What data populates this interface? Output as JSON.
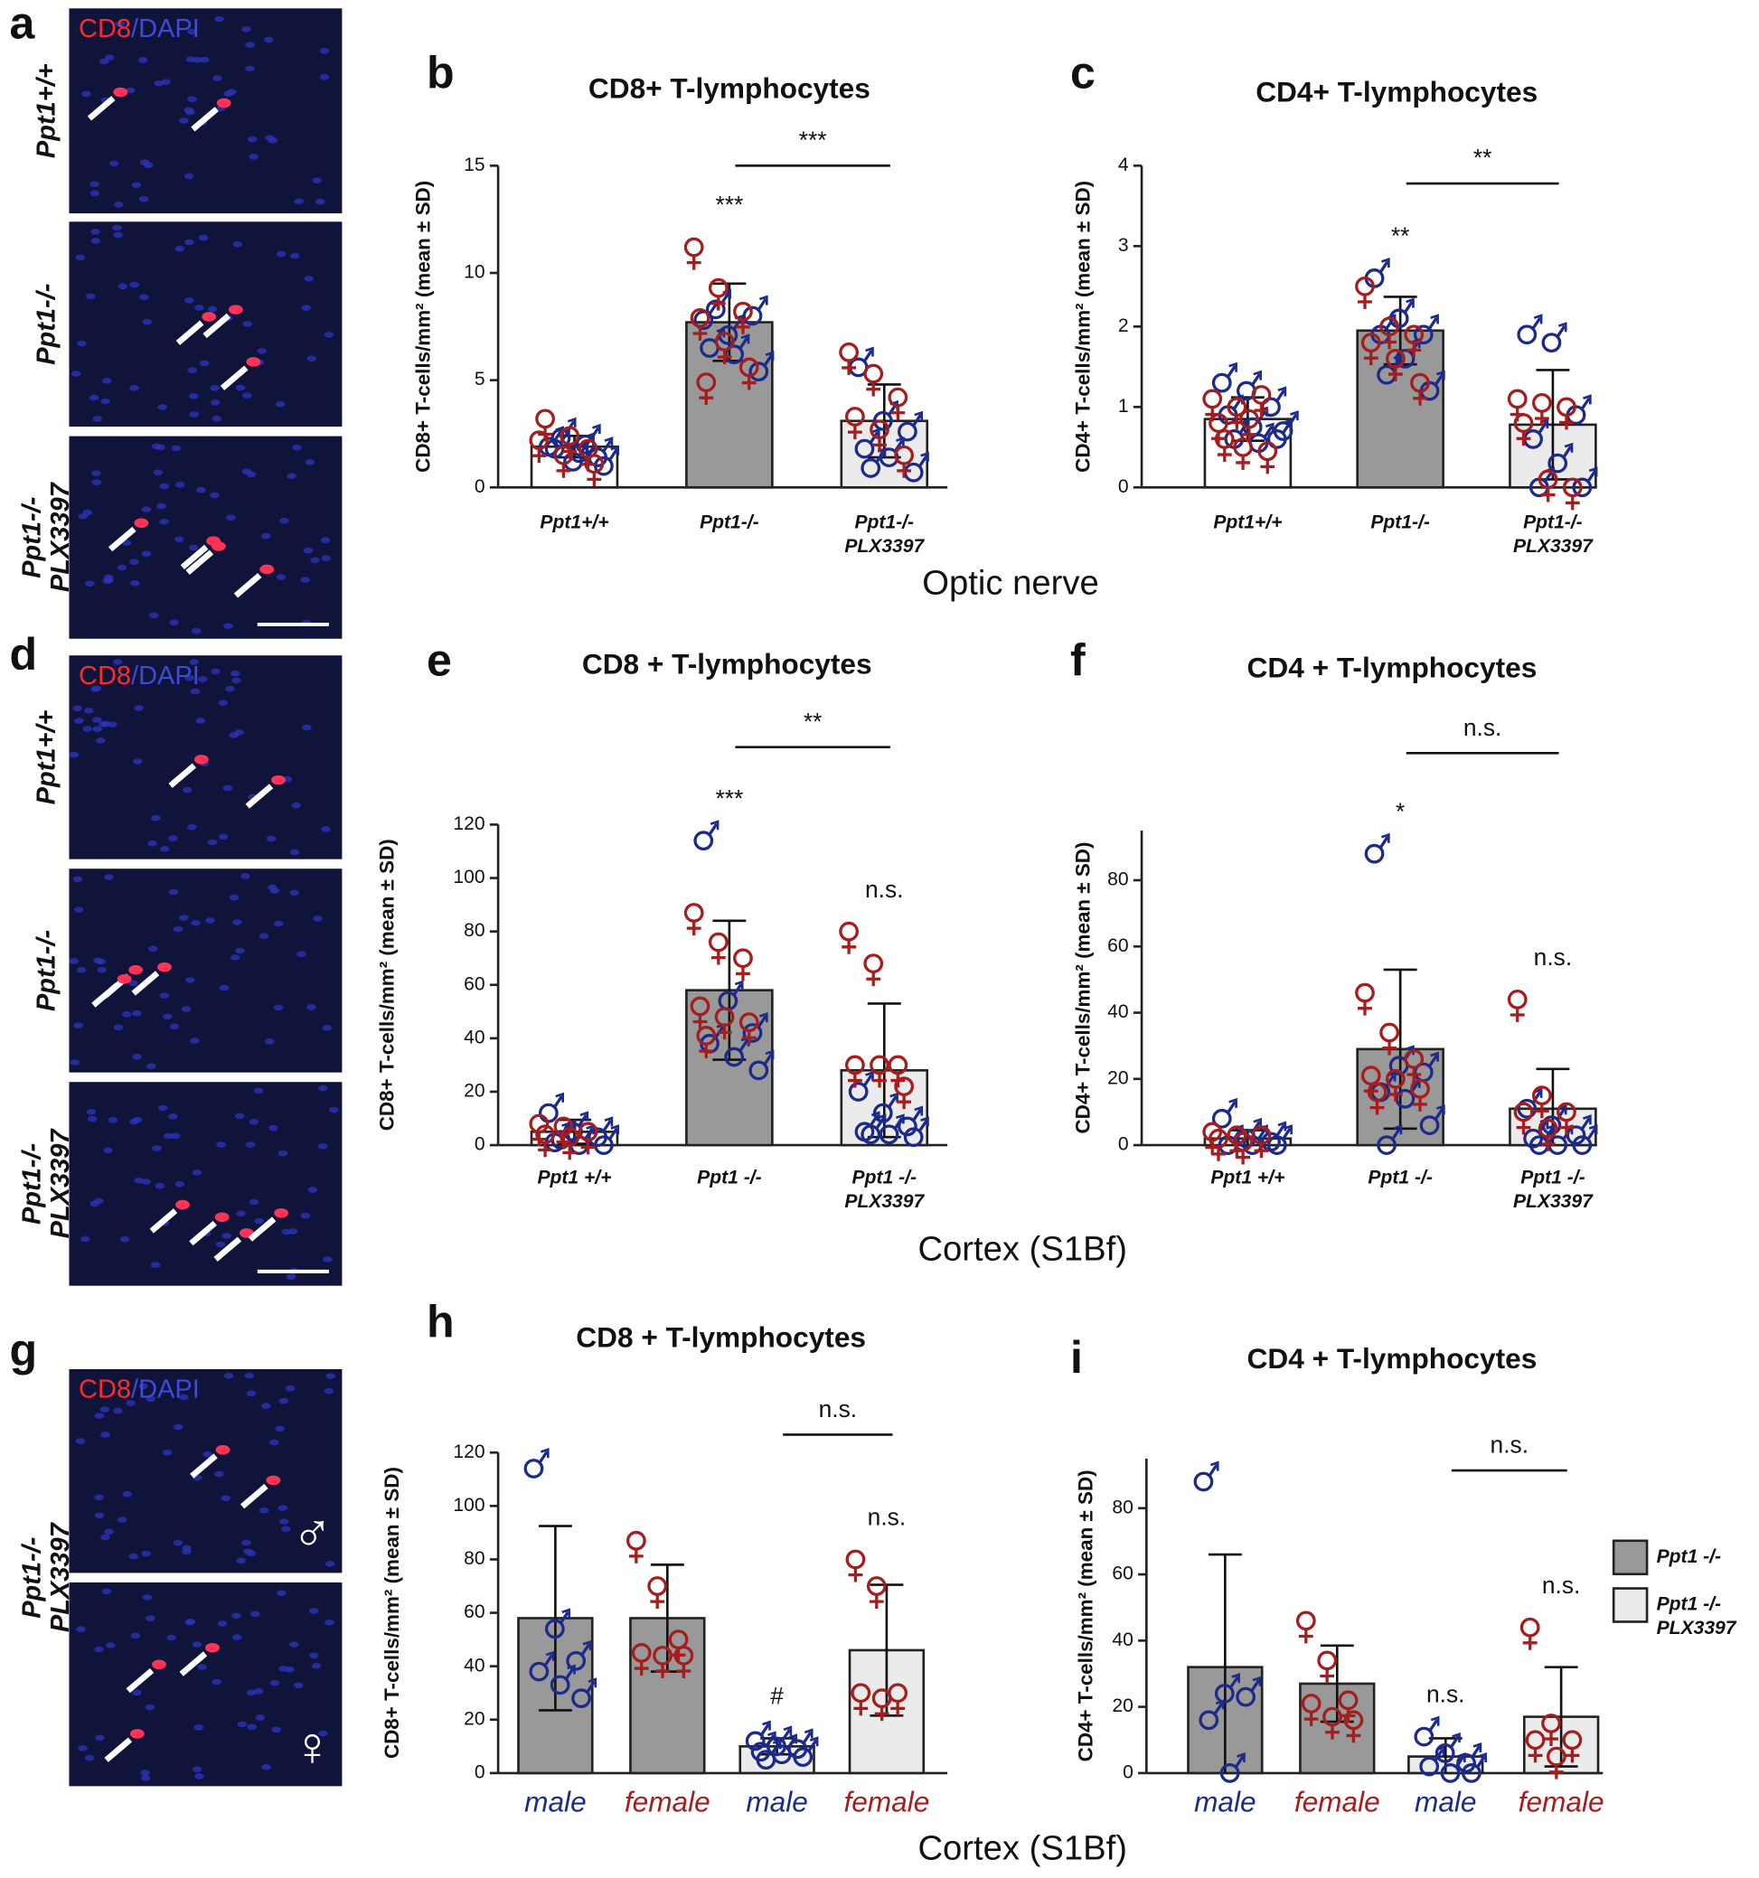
{
  "micrographs": [
    {
      "letter": "a",
      "stain": [
        "CD8",
        "/DAPI"
      ],
      "rows": [
        [
          "Ppt1+/+"
        ],
        [
          "Ppt1-/-"
        ],
        [
          "Ppt1-/-",
          "PLX3397"
        ]
      ]
    },
    {
      "letter": "d",
      "stain": [
        "CD8",
        "/DAPI"
      ],
      "rows": [
        [
          "Ppt1+/+"
        ],
        [
          "Ppt1-/-"
        ],
        [
          "Ppt1-/-",
          "PLX3397"
        ]
      ]
    },
    {
      "letter": "g",
      "stain": [
        "CD8",
        "/DAPI"
      ],
      "rows": [
        [
          "Ppt1-/-",
          "PLX3397"
        ]
      ],
      "symbols": [
        "♂",
        "♀"
      ]
    }
  ],
  "section_labels": [
    "Optic nerve",
    "Cortex (S1Bf)",
    "Cortex (S1Bf)"
  ],
  "chart_data": [
    {
      "type": "bar",
      "letter": "b",
      "title": "CD8+ T-lymphocytes",
      "y_label": "CD8+ T-cells/mm² (mean ± SD)",
      "categories": [
        [
          "Ppt1+/+"
        ],
        [
          "Ppt1-/-"
        ],
        [
          "Ppt1-/-",
          "PLX3397"
        ]
      ],
      "colors": [
        "#ffffff",
        "#999999",
        "#ebebeb"
      ],
      "values": [
        1.9,
        7.7,
        3.1
      ],
      "sd": [
        0.5,
        1.8,
        1.7
      ],
      "male_points": [
        [
          1.9,
          1.2,
          1.4,
          1.8,
          1.6,
          1.0,
          2.3,
          2.0
        ],
        [
          7.8,
          7.1,
          8.0,
          6.5,
          6.2,
          5.4,
          8.3
        ],
        [
          5.6,
          3.1,
          2.6,
          1.8,
          1.4,
          0.7,
          0.9
        ]
      ],
      "female_points": [
        [
          2.2,
          1.5,
          1.8,
          3.2,
          2.4,
          1.1
        ],
        [
          11.2,
          9.3,
          8.2,
          7.9,
          6.8,
          5.6,
          4.9
        ],
        [
          6.3,
          5.3,
          4.2,
          3.3,
          2.7,
          1.5
        ]
      ],
      "bar_labels": [
        null,
        "***",
        null
      ],
      "bracket": "***",
      "ylim": [
        0,
        15
      ],
      "yticks": [
        0,
        5,
        10,
        15
      ]
    },
    {
      "type": "bar",
      "letter": "c",
      "title": "CD4+ T-lymphocytes",
      "y_label": "CD4+ T-cells/mm² (mean ± SD)",
      "categories": [
        [
          "Ppt1+/+"
        ],
        [
          "Ppt1-/-"
        ],
        [
          "Ppt1-/-",
          "PLX3397"
        ]
      ],
      "colors": [
        "#ffffff",
        "#999999",
        "#ebebeb"
      ],
      "values": [
        0.85,
        1.95,
        0.78
      ],
      "sd": [
        0.27,
        0.42,
        0.68
      ],
      "male_points": [
        [
          1.3,
          1.2,
          1.0,
          0.9,
          0.75,
          0.6,
          0.6,
          0.55,
          0.7
        ],
        [
          2.6,
          2.1,
          1.9,
          1.9,
          1.6,
          1.2,
          1.4
        ],
        [
          1.9,
          1.8,
          0.9,
          0.6,
          0.3,
          0,
          0
        ]
      ],
      "female_points": [
        [
          1.1,
          1.0,
          1.15,
          0.8,
          0.5,
          0.45,
          0.6,
          0.85
        ],
        [
          2.5,
          2.0,
          1.9,
          1.8,
          1.6,
          1.3
        ],
        [
          1.1,
          1.05,
          1.0,
          0.8,
          0.1,
          0
        ]
      ],
      "bar_labels": [
        null,
        "**",
        null
      ],
      "bracket": "**",
      "ylim": [
        0,
        4
      ],
      "yticks": [
        0,
        1,
        2,
        3,
        4
      ]
    },
    {
      "type": "bar",
      "letter": "e",
      "title": "CD8 + T-lymphocytes",
      "y_label": "CD8+ T-cells/mm² (mean ± SD)",
      "categories": [
        [
          "Ppt1 +/+"
        ],
        [
          "Ppt1 -/-"
        ],
        [
          "Ppt1 -/-",
          "PLX3397"
        ]
      ],
      "colors": [
        "#ffffff",
        "#999999",
        "#ebebeb"
      ],
      "values": [
        5,
        58,
        28
      ],
      "sd": [
        4.5,
        26,
        25
      ],
      "male_points": [
        [
          12,
          5,
          3,
          1,
          0,
          0,
          2
        ],
        [
          114,
          54,
          42,
          38,
          33,
          28
        ],
        [
          20,
          12,
          7,
          5,
          4,
          3,
          4
        ]
      ],
      "female_points": [
        [
          8,
          7,
          5,
          4,
          3
        ],
        [
          87,
          76,
          70,
          52,
          48,
          46,
          41
        ],
        [
          80,
          68,
          30,
          30,
          30,
          22
        ]
      ],
      "bar_labels": [
        null,
        "***",
        "n.s."
      ],
      "bracket": "**",
      "ylim": [
        0,
        120
      ],
      "yticks": [
        0,
        20,
        40,
        60,
        80,
        100,
        120
      ]
    },
    {
      "type": "bar",
      "letter": "f",
      "title": "CD4 + T-lymphocytes",
      "y_label": "CD4+ T-cells/mm² (mean ± SD)",
      "categories": [
        [
          "Ppt1 +/+"
        ],
        [
          "Ppt1 -/-"
        ],
        [
          "Ppt1 -/-",
          "PLX3397"
        ]
      ],
      "colors": [
        "#ffffff",
        "#999999",
        "#ebebeb"
      ],
      "values": [
        2,
        29,
        11
      ],
      "sd": [
        2.5,
        24,
        12
      ],
      "male_points": [
        [
          8,
          2,
          1,
          0,
          0,
          0
        ],
        [
          88,
          24,
          22,
          16,
          14,
          6,
          0
        ],
        [
          11,
          6,
          3,
          2,
          0,
          0,
          0
        ]
      ],
      "female_points": [
        [
          4,
          3,
          3,
          2,
          1
        ],
        [
          46,
          34,
          26,
          21,
          20,
          17,
          16
        ],
        [
          44,
          15,
          10,
          10,
          5
        ]
      ],
      "bar_labels": [
        null,
        "*",
        "n.s."
      ],
      "bracket": "n.s.",
      "ylim": [
        0,
        95
      ],
      "yticks": [
        0,
        20,
        40,
        60,
        80
      ]
    },
    {
      "type": "bar",
      "letter": "h",
      "title": "CD8 + T-lymphocytes",
      "y_label": "CD8+ T-cells/mm² (mean ± SD)",
      "categories": [
        [
          "male"
        ],
        [
          "female"
        ],
        [
          "male"
        ],
        [
          "female"
        ]
      ],
      "label_colors": [
        "#1c2a8a",
        "#a51d1d",
        "#1c2a8a",
        "#a51d1d"
      ],
      "colors": [
        "#999999",
        "#999999",
        "#ebebeb",
        "#ebebeb"
      ],
      "values": [
        58,
        58,
        10,
        46
      ],
      "sd": [
        34.5,
        20,
        3,
        24.5
      ],
      "male_points": [
        [
          114,
          54,
          42,
          38,
          33,
          28
        ],
        [],
        [
          12,
          10,
          9,
          8,
          7,
          6,
          5
        ]
      ],
      "female_points": [
        [],
        [
          87,
          70,
          50,
          45,
          44,
          44
        ],
        [],
        [
          80,
          70,
          30,
          30,
          28
        ]
      ],
      "bar_labels": [
        null,
        null,
        "#",
        "n.s."
      ],
      "bracket": "n.s.",
      "ylim": [
        0,
        120
      ],
      "yticks": [
        0,
        20,
        40,
        60,
        80,
        100,
        120
      ]
    },
    {
      "type": "bar",
      "letter": "i",
      "title": "CD4 + T-lymphocytes",
      "y_label": "CD4+ T-cells/mm² (mean ± SD)",
      "categories": [
        [
          "male"
        ],
        [
          "female"
        ],
        [
          "male"
        ],
        [
          "female"
        ]
      ],
      "label_colors": [
        "#1c2a8a",
        "#a51d1d",
        "#1c2a8a",
        "#a51d1d"
      ],
      "colors": [
        "#999999",
        "#999999",
        "#ebebeb",
        "#ebebeb"
      ],
      "values": [
        32,
        27,
        5,
        17
      ],
      "sd": [
        34,
        11.5,
        5.5,
        15
      ],
      "male_points": [
        [
          88,
          24,
          23,
          16,
          0
        ],
        [],
        [
          11,
          6,
          3,
          2,
          0,
          0
        ]
      ],
      "female_points": [
        [],
        [
          46,
          34,
          22,
          21,
          17,
          16
        ],
        [],
        [
          44,
          15,
          10,
          10,
          5
        ]
      ],
      "bar_labels": [
        null,
        null,
        "n.s.",
        "n.s."
      ],
      "bracket": "n.s.",
      "legend": [
        {
          "name": [
            "Ppt1 -/-"
          ],
          "color": "#999999"
        },
        {
          "name": [
            "Ppt1 -/-",
            "PLX3397"
          ],
          "color": "#ebebeb"
        }
      ],
      "ylim": [
        0,
        95
      ],
      "yticks": [
        0,
        20,
        40,
        60,
        80
      ]
    }
  ]
}
